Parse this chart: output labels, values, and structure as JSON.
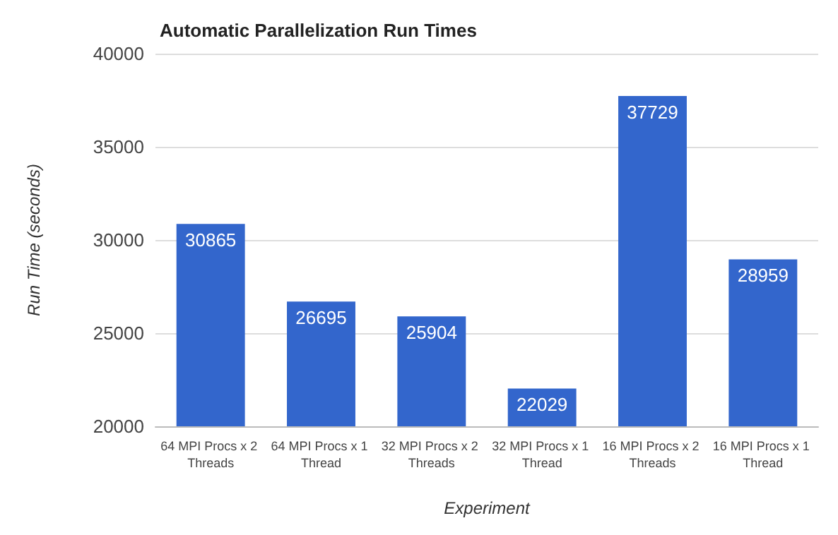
{
  "chart_data": {
    "type": "bar",
    "title": "Automatic Parallelization Run Times",
    "xlabel": "Experiment",
    "ylabel": "Run Time (seconds)",
    "categories": [
      "64 MPI Procs x 2 Threads",
      "64 MPI Procs x 1 Thread",
      "32 MPI Procs x 2 Threads",
      "32 MPI Procs x 1 Thread",
      "16 MPI Procs x 2 Threads",
      "16 MPI Procs x 1 Thread"
    ],
    "values": [
      30865,
      26695,
      25904,
      22029,
      37729,
      28959
    ],
    "color": "#3366cc",
    "ylim": [
      20000,
      40000
    ],
    "yticks": [
      20000,
      25000,
      30000,
      35000,
      40000
    ],
    "grid": "y",
    "data_labels": true
  }
}
